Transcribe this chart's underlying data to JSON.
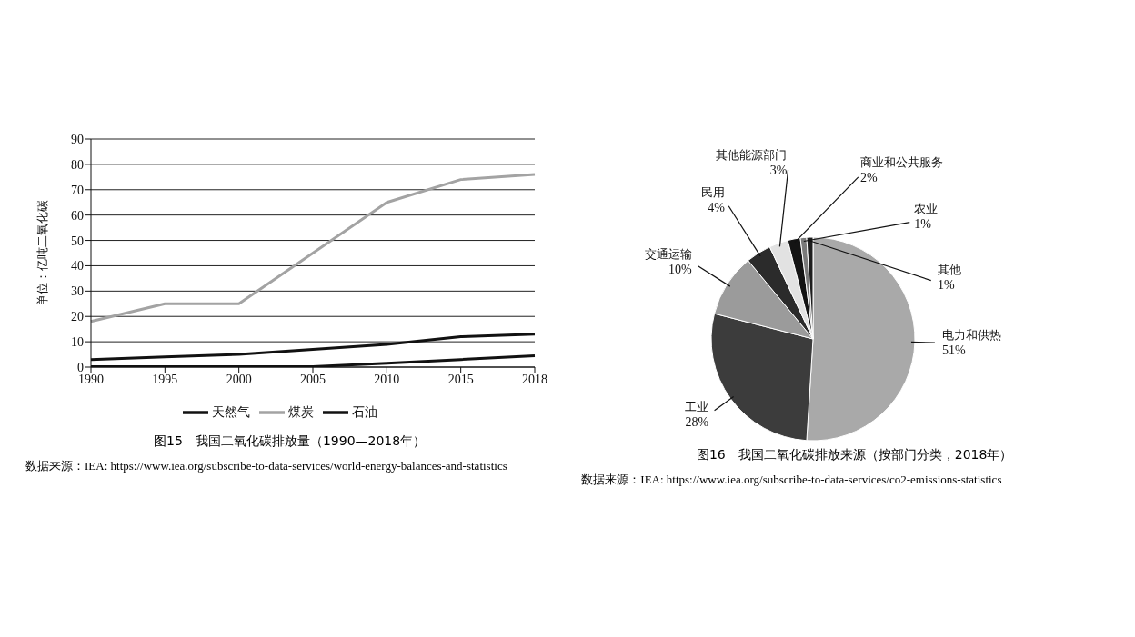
{
  "chart_data": [
    {
      "type": "line",
      "title": "图15　我国二氧化碳排放量（1990—2018年）",
      "ylabel": "单位：亿吨二氧化碳",
      "categories": [
        "1990",
        "1995",
        "2000",
        "2005",
        "2010",
        "2015",
        "2018"
      ],
      "series": [
        {
          "name": "煤炭",
          "color": "#a3a3a3",
          "values": [
            18,
            25,
            25,
            45,
            65,
            74,
            76
          ]
        },
        {
          "name": "石油",
          "color": "#111111",
          "values": [
            3,
            4,
            5,
            7,
            9,
            12,
            13
          ]
        },
        {
          "name": "天然气",
          "color": "#111111",
          "values": [
            0.2,
            0.2,
            0.2,
            0.2,
            1.5,
            3,
            4.5
          ]
        }
      ],
      "ylim": [
        0,
        90
      ],
      "yticks": [
        0,
        10,
        20,
        30,
        40,
        50,
        60,
        70,
        80,
        90
      ],
      "grid": "y",
      "legend": "bottom",
      "marker": "none",
      "line_style": "solid",
      "annotations": [
        "数据来源：IEA: https://www.iea.org/subscribe-to-data-services/world-energy-balances-and-statistics"
      ]
    },
    {
      "type": "pie",
      "title": "图16　我国二氧化碳排放来源（按部门分类，2018年）",
      "categories": [
        "电力和供热",
        "工业",
        "交通运输",
        "民用",
        "其他能源部门",
        "商业和公共服务",
        "农业",
        "其他"
      ],
      "values": [
        51,
        28,
        10,
        4,
        3,
        2,
        1,
        1
      ],
      "colors": [
        "#a9a9a9",
        "#3c3c3c",
        "#9b9b9b",
        "#2b2b2b",
        "#e2e2e2",
        "#141414",
        "#7a7a7a",
        "#1e1e1e"
      ],
      "value_labels": [
        "51%",
        "28%",
        "10%",
        "4%",
        "3%",
        "2%",
        "1%",
        "1%"
      ],
      "annotations": [
        "数据来源：IEA: https://www.iea.org/subscribe-to-data-services/co2-emissions-statistics"
      ]
    }
  ]
}
